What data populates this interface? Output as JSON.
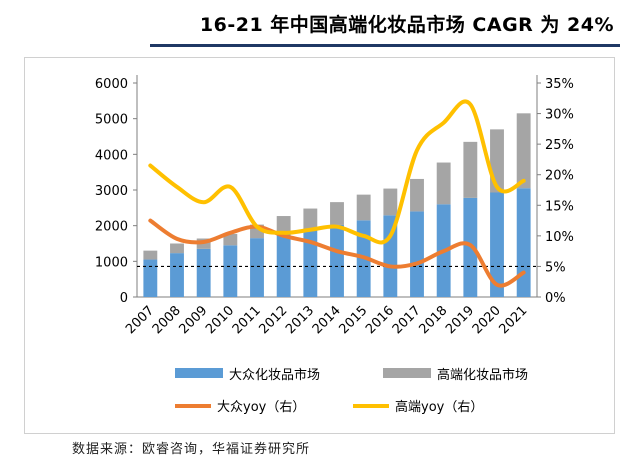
{
  "title": "16-21 年中国高端化妆品市场 CAGR 为 24%",
  "source": "数据来源：欧睿咨询，华福证券研究所",
  "chart_data": {
    "type": "bar",
    "categories": [
      "2007",
      "2008",
      "2009",
      "2010",
      "2011",
      "2012",
      "2013",
      "2014",
      "2015",
      "2016",
      "2017",
      "2018",
      "2019",
      "2020",
      "2021"
    ],
    "left_axis": {
      "ylim": [
        0,
        6000
      ],
      "ticks": [
        0,
        1000,
        2000,
        3000,
        4000,
        5000,
        6000
      ],
      "tick_labels": [
        "0",
        "1000",
        "2000",
        "3000",
        "4000",
        "5000",
        "6000"
      ]
    },
    "right_axis": {
      "ylim": [
        0,
        35
      ],
      "ticks": [
        0,
        5,
        10,
        15,
        20,
        25,
        30,
        35
      ],
      "tick_labels": [
        "0%",
        "5%",
        "10%",
        "15%",
        "20%",
        "25%",
        "30%",
        "35%"
      ]
    },
    "series": [
      {
        "name": "大众化妆品市场",
        "kind": "bar",
        "color": "#5b9bd5",
        "values": [
          1050,
          1230,
          1350,
          1450,
          1650,
          1800,
          1920,
          2020,
          2150,
          2290,
          2400,
          2600,
          2780,
          2930,
          3050
        ]
      },
      {
        "name": "高端化妆品市场",
        "kind": "bar-stacked",
        "color": "#a5a5a5",
        "values": [
          250,
          270,
          290,
          320,
          380,
          470,
          560,
          640,
          720,
          750,
          910,
          1170,
          1570,
          1770,
          2100
        ]
      },
      {
        "name": "大众yoy（右）",
        "kind": "line",
        "axis": "right",
        "color": "#ed7d31",
        "values": [
          12.5,
          9.5,
          9.0,
          10.5,
          11.5,
          10.0,
          9.0,
          7.5,
          6.5,
          5.0,
          5.5,
          7.5,
          8.5,
          2.0,
          4.0
        ]
      },
      {
        "name": "高端yoy（右）",
        "kind": "line",
        "axis": "right",
        "color": "#ffc000",
        "values": [
          21.5,
          18.0,
          15.5,
          18.0,
          11.5,
          10.5,
          11.0,
          11.5,
          10.0,
          10.0,
          24.0,
          28.5,
          31.5,
          18.0,
          19.0
        ]
      }
    ],
    "reference_line": {
      "value": 5,
      "axis": "right",
      "style": "dashed"
    },
    "legend_placement": "bottom",
    "grid": false
  }
}
